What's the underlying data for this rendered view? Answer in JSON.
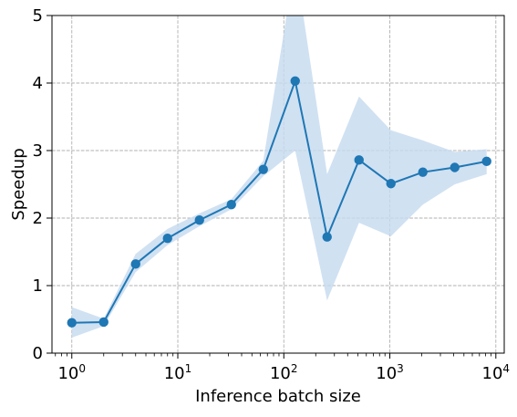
{
  "chart_data": {
    "type": "line",
    "title": "",
    "xlabel": "Inference batch size",
    "ylabel": "Speedup",
    "x_scale": "log",
    "xlim": [
      0.65,
      12000
    ],
    "ylim": [
      0,
      5
    ],
    "grid": true,
    "legend": "none",
    "x_tick_values": [
      1,
      10,
      100,
      1000,
      10000
    ],
    "x_tick_labels": [
      {
        "base": "10",
        "exp": "0"
      },
      {
        "base": "10",
        "exp": "1"
      },
      {
        "base": "10",
        "exp": "2"
      },
      {
        "base": "10",
        "exp": "3"
      },
      {
        "base": "10",
        "exp": "4"
      }
    ],
    "y_tick_values": [
      0,
      1,
      2,
      3,
      4,
      5
    ],
    "y_tick_labels": [
      "0",
      "1",
      "2",
      "3",
      "4",
      "5"
    ],
    "series": [
      {
        "x": [
          1,
          2,
          4,
          8,
          16,
          32,
          64,
          128,
          256,
          512,
          1024,
          2048,
          4096,
          8192
        ],
        "values": [
          0.45,
          0.46,
          1.32,
          1.7,
          1.97,
          2.2,
          2.72,
          4.03,
          1.72,
          2.86,
          2.51,
          2.68,
          2.75,
          2.84
        ],
        "lower": [
          0.23,
          0.4,
          1.2,
          1.6,
          1.88,
          2.13,
          2.62,
          3.0,
          0.78,
          1.93,
          1.73,
          2.2,
          2.5,
          2.65
        ],
        "upper": [
          0.68,
          0.51,
          1.47,
          1.84,
          2.07,
          2.28,
          2.85,
          5.8,
          2.65,
          3.8,
          3.3,
          3.15,
          2.98,
          3.02
        ],
        "color": "#1f77b4",
        "band_color": "#c6dbef"
      }
    ]
  }
}
